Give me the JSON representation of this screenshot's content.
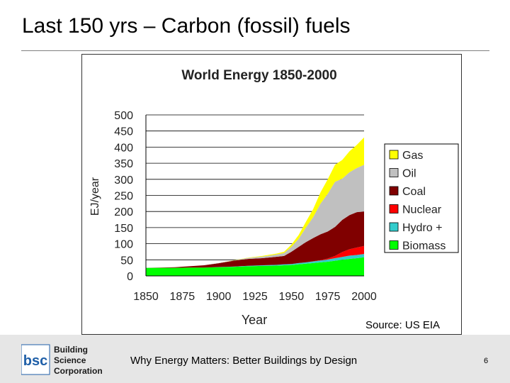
{
  "slide": {
    "title": "Last 150 yrs – Carbon (fossil) fuels",
    "source": "Source: US EIA",
    "footer": "Why Energy Matters: Better Buildings by Design",
    "page_number": "6",
    "logo": {
      "mark": "bsc",
      "line1": "Building",
      "line2": "Science",
      "line3": "Corporation"
    }
  },
  "colors": {
    "Gas": "#ffff00",
    "Oil": "#c0c0c0",
    "Coal": "#800000",
    "Nuclear": "#ff0000",
    "Hydro +": "#33cccc",
    "Biomass": "#00ff00",
    "logo_blue": "#1f5fa8"
  },
  "chart_data": {
    "type": "area",
    "stacked": true,
    "title": "World Energy 1850-2000",
    "xlabel": "Year",
    "ylabel": "EJ/year",
    "xlim": [
      1850,
      2000
    ],
    "ylim": [
      0,
      500
    ],
    "xticks": [
      1850,
      1875,
      1900,
      1925,
      1950,
      1975,
      2000
    ],
    "yticks": [
      0,
      50,
      100,
      150,
      200,
      250,
      300,
      350,
      400,
      450,
      500
    ],
    "grid": "horizontal",
    "legend_position": "right",
    "x": [
      1850,
      1860,
      1870,
      1880,
      1890,
      1900,
      1910,
      1920,
      1930,
      1940,
      1945,
      1950,
      1955,
      1960,
      1965,
      1970,
      1975,
      1980,
      1985,
      1990,
      1995,
      2000
    ],
    "series": [
      {
        "name": "Biomass",
        "values": [
          25,
          25,
          25,
          26,
          26,
          27,
          28,
          30,
          31,
          32,
          33,
          34,
          36,
          38,
          40,
          42,
          44,
          47,
          50,
          53,
          55,
          58
        ]
      },
      {
        "name": "Hydro +",
        "values": [
          0,
          0,
          0,
          0,
          0,
          0.5,
          1,
          1.5,
          2,
          2.5,
          3,
          3,
          4,
          4,
          5,
          6,
          7,
          8,
          9,
          10,
          10,
          10
        ]
      },
      {
        "name": "Nuclear",
        "values": [
          0,
          0,
          0,
          0,
          0,
          0,
          0,
          0,
          0,
          0,
          0,
          0,
          0,
          0,
          0.5,
          1,
          3,
          7,
          15,
          20,
          23,
          25
        ]
      },
      {
        "name": "Coal",
        "values": [
          0,
          1,
          2,
          4,
          7,
          12,
          18,
          21,
          22,
          25,
          26,
          38,
          50,
          63,
          72,
          80,
          84,
          90,
          100,
          106,
          110,
          107
        ]
      },
      {
        "name": "Oil",
        "values": [
          0,
          0,
          0,
          0,
          0,
          0.5,
          1,
          3,
          5,
          7,
          9,
          15,
          25,
          45,
          65,
          95,
          117,
          140,
          128,
          133,
          137,
          145
        ]
      },
      {
        "name": "Gas",
        "values": [
          0,
          0,
          0,
          0,
          0,
          0,
          0.5,
          1,
          2,
          3,
          4,
          7,
          12,
          18,
          25,
          35,
          45,
          53,
          58,
          65,
          72,
          85
        ]
      }
    ],
    "legend_order": [
      "Gas",
      "Oil",
      "Coal",
      "Nuclear",
      "Hydro +",
      "Biomass"
    ]
  }
}
